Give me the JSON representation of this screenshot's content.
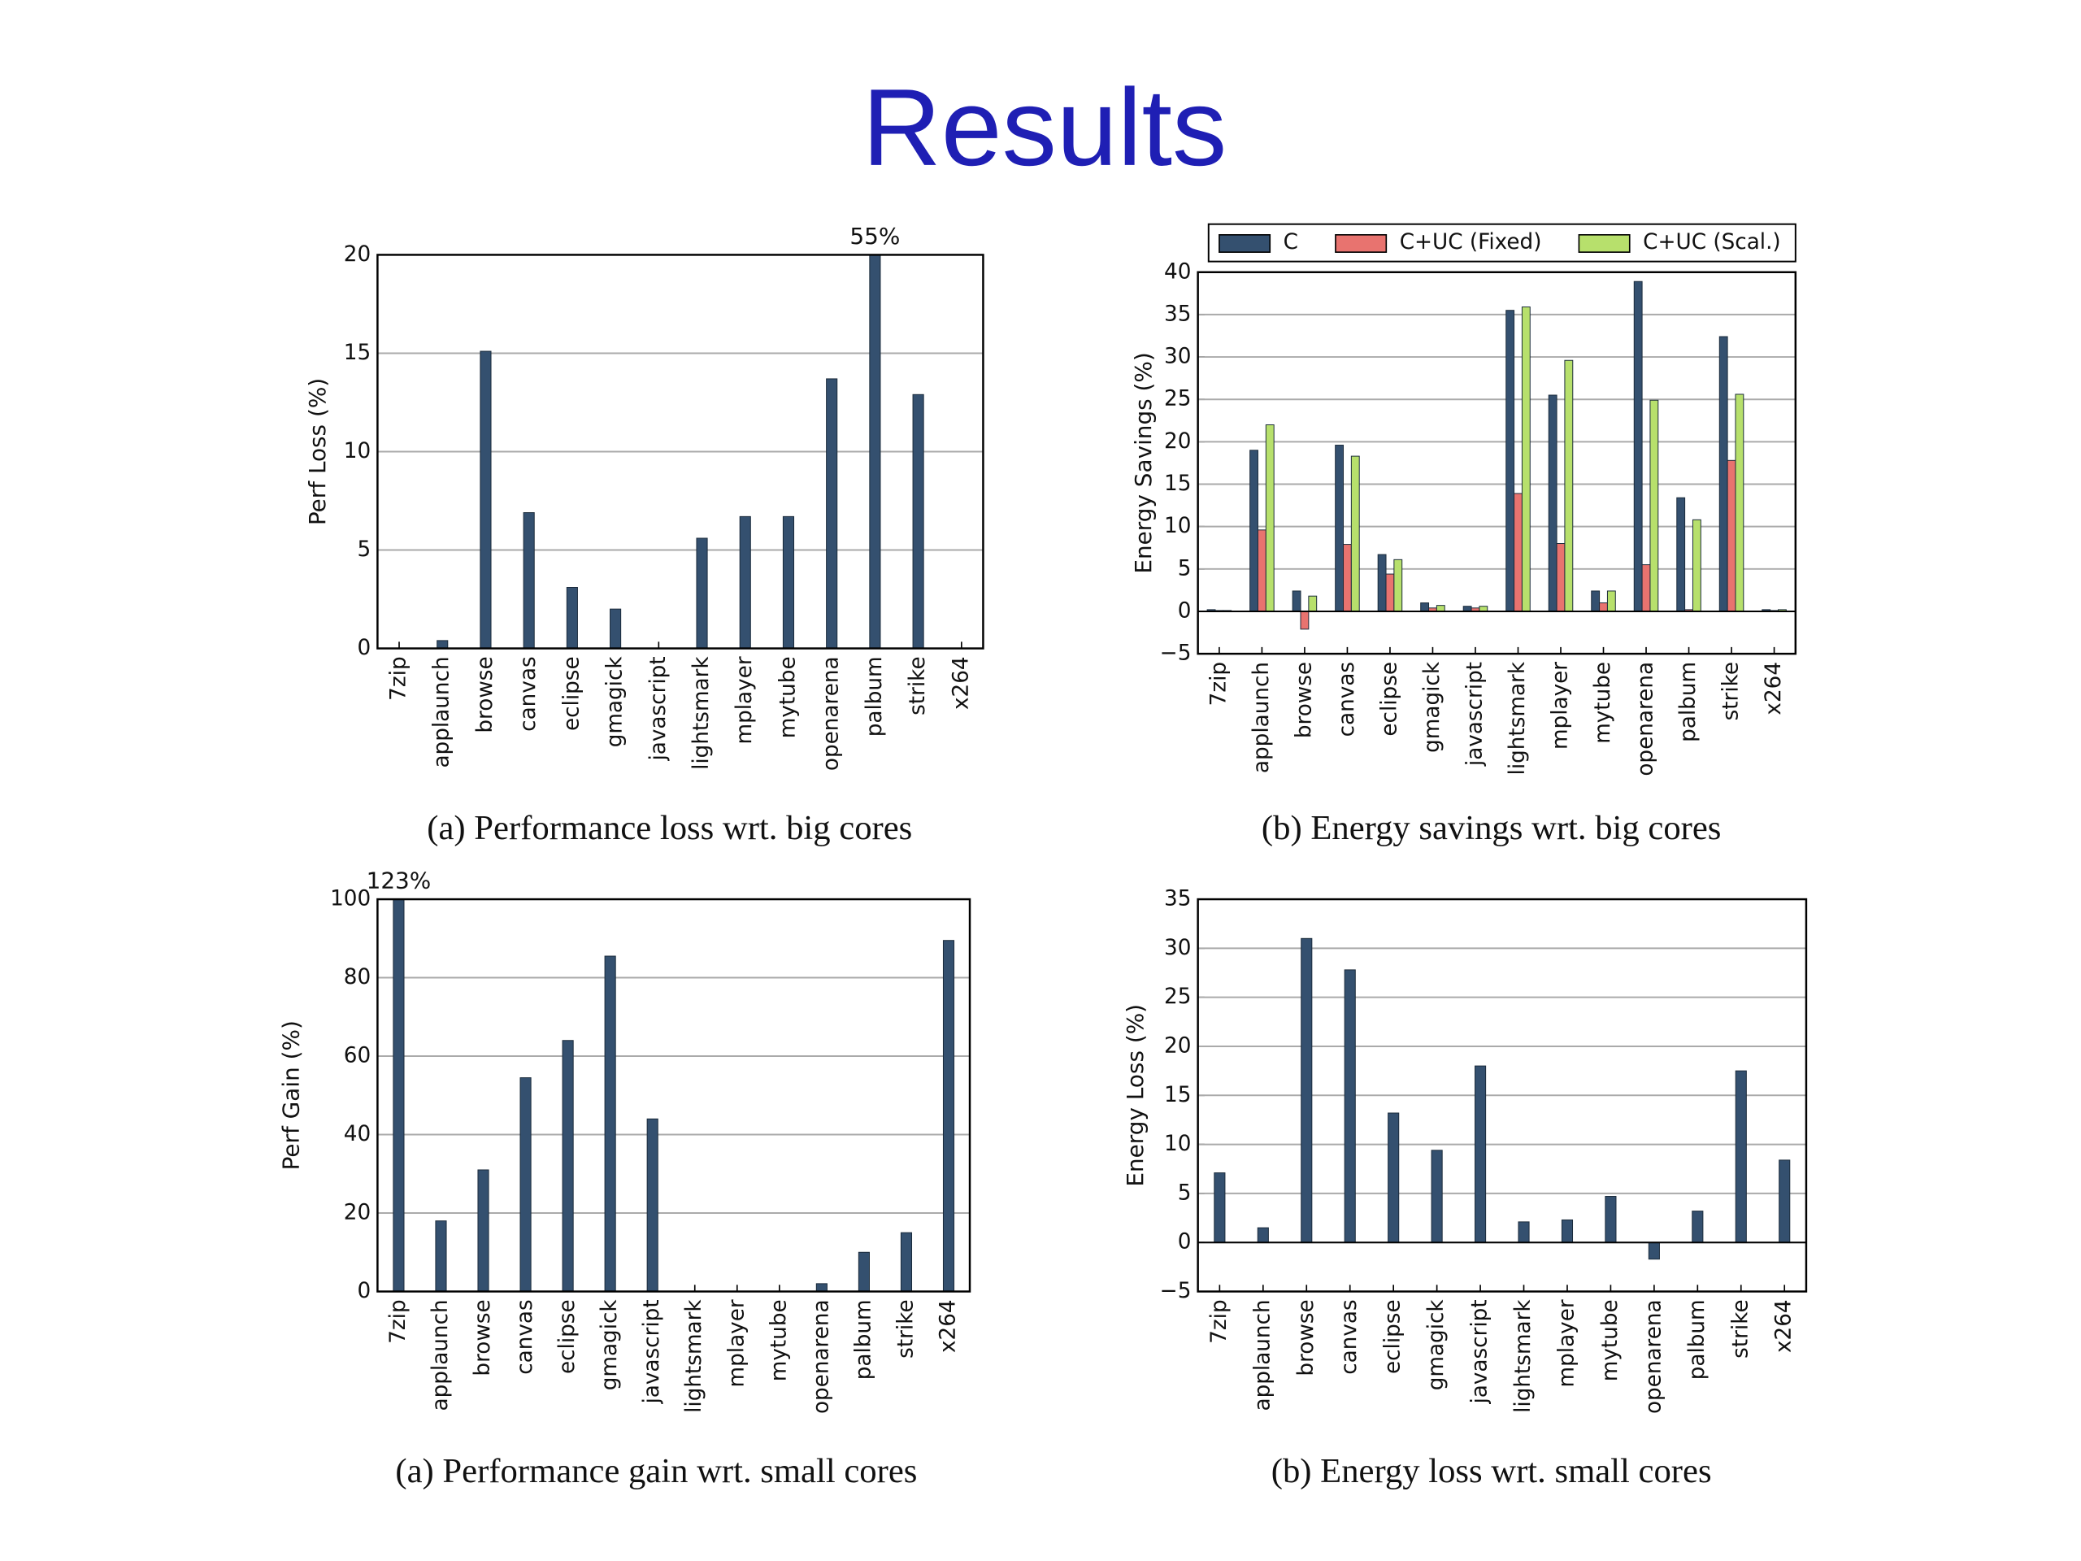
{
  "title": "Results",
  "chart_data": [
    {
      "type": "bar",
      "caption": "(a) Performance loss wrt. big cores",
      "ylabel": "Perf Loss (%)",
      "categories": [
        "7zip",
        "applaunch",
        "browse",
        "canvas",
        "eclipse",
        "gmagick",
        "javascript",
        "lightsmark",
        "mplayer",
        "mytube",
        "openarena",
        "palbum",
        "strike",
        "x264"
      ],
      "values": [
        0,
        0.4,
        15.1,
        6.9,
        3.1,
        2.0,
        0,
        5.6,
        6.7,
        6.7,
        13.7,
        55,
        12.9,
        0
      ],
      "value_labels": [
        null,
        null,
        null,
        null,
        null,
        null,
        null,
        null,
        null,
        null,
        null,
        "55%",
        null,
        null
      ],
      "color": "#34506f",
      "ylim": [
        0,
        20
      ],
      "yticks": [
        0,
        5,
        10,
        15,
        20
      ],
      "grid": true
    },
    {
      "type": "bar",
      "caption": "(b) Energy savings wrt. big cores",
      "ylabel": "Energy Savings (%)",
      "categories": [
        "7zip",
        "applaunch",
        "browse",
        "canvas",
        "eclipse",
        "gmagick",
        "javascript",
        "lightsmark",
        "mplayer",
        "mytube",
        "openarena",
        "palbum",
        "strike",
        "x264"
      ],
      "series": [
        {
          "name": "C",
          "color": "#34506f",
          "values": [
            0.2,
            19,
            2.4,
            19.6,
            6.7,
            1.0,
            0.6,
            35.5,
            25.5,
            2.4,
            38.9,
            13.4,
            32.4,
            0.2
          ]
        },
        {
          "name": "C+UC (Fixed)",
          "color": "#e8736f",
          "values": [
            0.1,
            9.6,
            -2.1,
            7.9,
            4.4,
            0.4,
            0.4,
            13.9,
            8.0,
            1.0,
            5.5,
            0.2,
            17.8,
            0.1
          ]
        },
        {
          "name": "C+UC (Scal.)",
          "color": "#b7e06c",
          "values": [
            0.1,
            22,
            1.8,
            18.3,
            6.1,
            0.7,
            0.6,
            35.9,
            29.6,
            2.4,
            24.9,
            10.8,
            25.6,
            0.2
          ]
        }
      ],
      "ylim": [
        -5,
        40
      ],
      "yticks": [
        {
          "value": -5,
          "label": "−5"
        },
        0,
        5,
        10,
        15,
        20,
        25,
        30,
        35,
        40
      ],
      "grid": true,
      "legend": "top"
    },
    {
      "type": "bar",
      "caption": "(a) Performance gain wrt. small cores",
      "ylabel": "Perf Gain (%)",
      "categories": [
        "7zip",
        "applaunch",
        "browse",
        "canvas",
        "eclipse",
        "gmagick",
        "javascript",
        "lightsmark",
        "mplayer",
        "mytube",
        "openarena",
        "palbum",
        "strike",
        "x264"
      ],
      "values": [
        123,
        18,
        31,
        54.5,
        64,
        85.5,
        44,
        0,
        0,
        0,
        2,
        10,
        15,
        89.5
      ],
      "value_labels": [
        "123%",
        null,
        null,
        null,
        null,
        null,
        null,
        null,
        null,
        null,
        null,
        null,
        null,
        null
      ],
      "color": "#34506f",
      "ylim": [
        0,
        100
      ],
      "yticks": [
        0,
        20,
        40,
        60,
        80,
        100
      ],
      "grid": true
    },
    {
      "type": "bar",
      "caption": "(b) Energy loss wrt. small cores",
      "ylabel": "Energy Loss (%)",
      "categories": [
        "7zip",
        "applaunch",
        "browse",
        "canvas",
        "eclipse",
        "gmagick",
        "javascript",
        "lightsmark",
        "mplayer",
        "mytube",
        "openarena",
        "palbum",
        "strike",
        "x264"
      ],
      "values": [
        7.1,
        1.5,
        31,
        27.8,
        13.2,
        9.4,
        18,
        2.1,
        2.3,
        4.7,
        -1.7,
        3.2,
        17.5,
        8.4
      ],
      "color": "#34506f",
      "ylim": [
        -5,
        35
      ],
      "yticks": [
        {
          "value": -5,
          "label": "−5"
        },
        0,
        5,
        10,
        15,
        20,
        25,
        30,
        35
      ],
      "grid": true
    }
  ]
}
